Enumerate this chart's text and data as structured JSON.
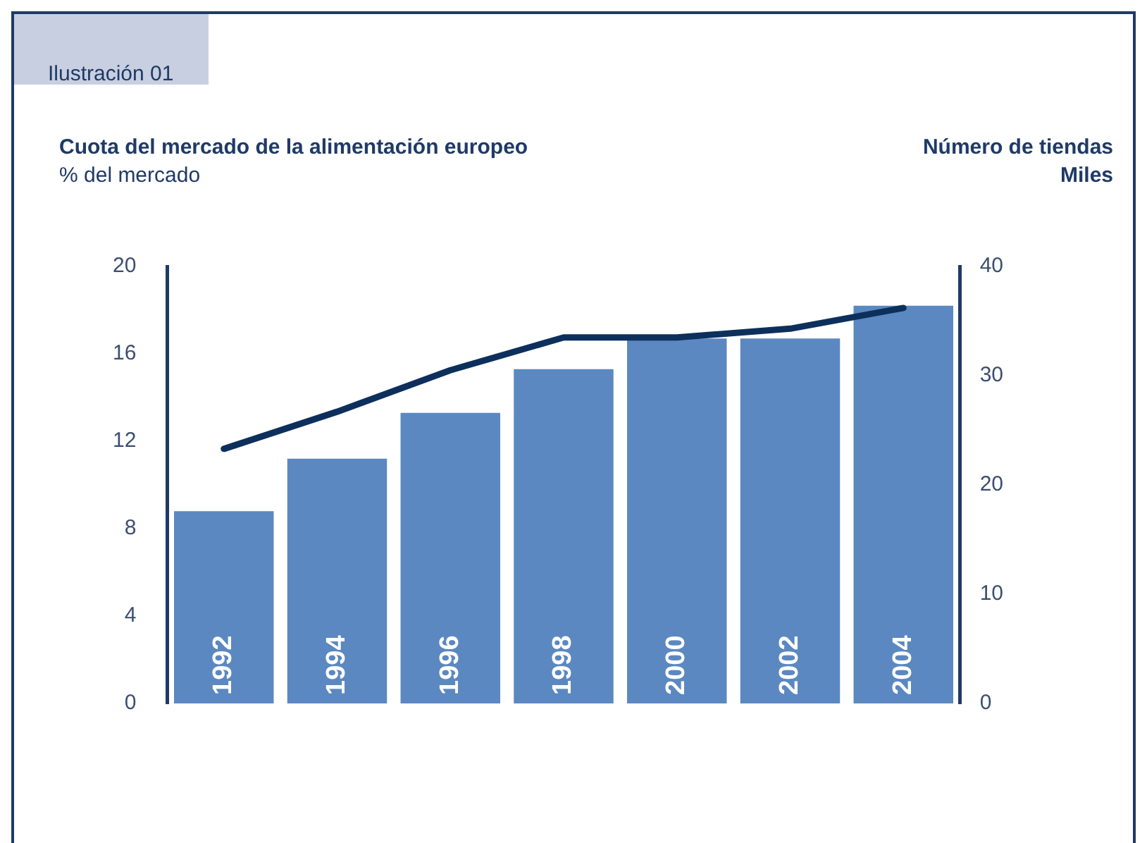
{
  "chart_data": {
    "type": "bar",
    "title": "Ilustración 01",
    "ylabel": "Cuota del mercado de la alimentación europeo",
    "y2label": "Número de tiendas",
    "annotations": [
      "% del mercado",
      "Miles"
    ],
    "categories": [
      "1992",
      "1994",
      "1996",
      "1998",
      "2000",
      "2002",
      "2004"
    ],
    "series": [
      {
        "color": "#5b88c0",
        "values": [
          8.8,
          11.2,
          13.3,
          15.3,
          16.7,
          16.7,
          18.2
        ]
      },
      {
        "type": "line",
        "axis": "y2",
        "color": "#0d2f5c",
        "values": [
          23.3,
          26.7,
          30.5,
          33.5,
          33.5,
          34.3,
          36.2
        ]
      }
    ],
    "ylim": [
      0,
      20
    ],
    "yticks": [
      0,
      4,
      8,
      12,
      16,
      20
    ],
    "y2lim": [
      0,
      40
    ],
    "y2ticks": [
      0,
      10,
      20,
      30,
      40
    ],
    "grid": false,
    "legend": false,
    "marker": "none",
    "line_style": "solid"
  }
}
